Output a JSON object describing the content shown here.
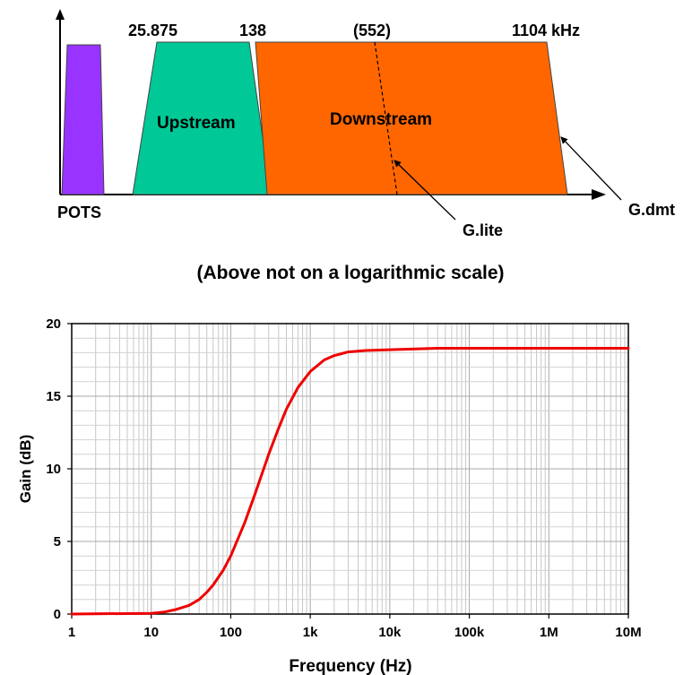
{
  "band_diagram": {
    "freq_labels": [
      "25.875",
      "138",
      "(552)",
      "1104 kHz"
    ],
    "bands": [
      {
        "name": "POTS",
        "color": "#9933ff"
      },
      {
        "name": "Upstream",
        "color": "#00c896"
      },
      {
        "name": "Downstream",
        "color": "#ff6600"
      }
    ],
    "callouts": [
      "G.lite",
      "G.dmt"
    ],
    "note": "(Above not on a logarithmic scale)"
  },
  "chart_data": {
    "type": "line",
    "xlabel": "Frequency (Hz)",
    "ylabel": "Gain (dB)",
    "x_scale": "log",
    "xlim": [
      1,
      10000000
    ],
    "ylim": [
      0,
      20
    ],
    "x_ticks": [
      {
        "value": 1,
        "label": "1"
      },
      {
        "value": 10,
        "label": "10"
      },
      {
        "value": 100,
        "label": "100"
      },
      {
        "value": 1000,
        "label": "1k"
      },
      {
        "value": 10000,
        "label": "10k"
      },
      {
        "value": 100000,
        "label": "100k"
      },
      {
        "value": 1000000,
        "label": "1M"
      },
      {
        "value": 10000000,
        "label": "10M"
      }
    ],
    "y_ticks": [
      {
        "value": 0,
        "label": "0"
      },
      {
        "value": 5,
        "label": "5"
      },
      {
        "value": 10,
        "label": "10"
      },
      {
        "value": 15,
        "label": "15"
      },
      {
        "value": 20,
        "label": "20"
      }
    ],
    "grid": true,
    "series": [
      {
        "color": "#ee0000",
        "x": [
          1,
          10,
          15,
          20,
          30,
          40,
          50,
          60,
          80,
          100,
          150,
          200,
          300,
          400,
          500,
          700,
          1000,
          1500,
          2000,
          3000,
          5000,
          10000,
          40000,
          100000,
          1000000,
          10000000
        ],
        "y": [
          0,
          0.05,
          0.15,
          0.3,
          0.6,
          1.0,
          1.5,
          2.0,
          3.0,
          4.0,
          6.3,
          8.2,
          11.0,
          12.8,
          14.1,
          15.6,
          16.7,
          17.5,
          17.8,
          18.05,
          18.15,
          18.2,
          18.3,
          18.3,
          18.3,
          18.3
        ]
      }
    ]
  }
}
